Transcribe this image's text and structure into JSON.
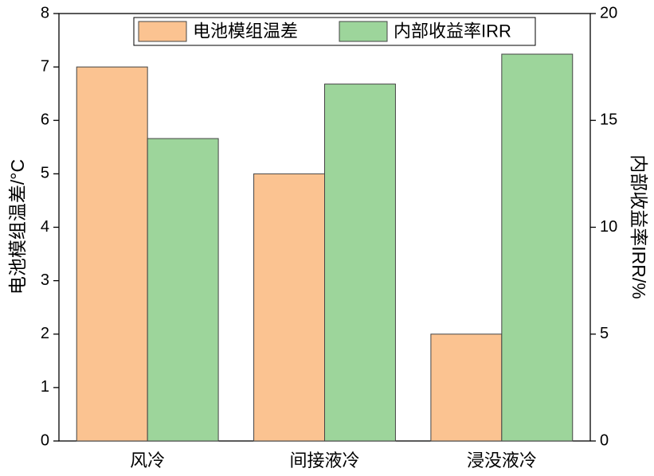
{
  "chart_data": {
    "type": "bar",
    "categories": [
      "风冷",
      "间接液冷",
      "浸没液冷"
    ],
    "series": [
      {
        "name": "电池模组温差",
        "color": "#fbc391",
        "values": [
          7,
          5,
          2
        ]
      },
      {
        "name": "内部收益率IRR",
        "color": "#9dd59b",
        "values": [
          14.15,
          16.7,
          18.1
        ],
        "axis": "y2"
      }
    ],
    "ylabel": "电池模组温差/°C",
    "y2label": "内部收益率IRR/%",
    "ylim": [
      0,
      8
    ],
    "yticks": [
      0,
      1,
      2,
      3,
      4,
      5,
      6,
      7,
      8
    ],
    "y2lim": [
      0,
      20
    ],
    "y2ticks": [
      0,
      5,
      10,
      15,
      20
    ],
    "legend": "top"
  }
}
